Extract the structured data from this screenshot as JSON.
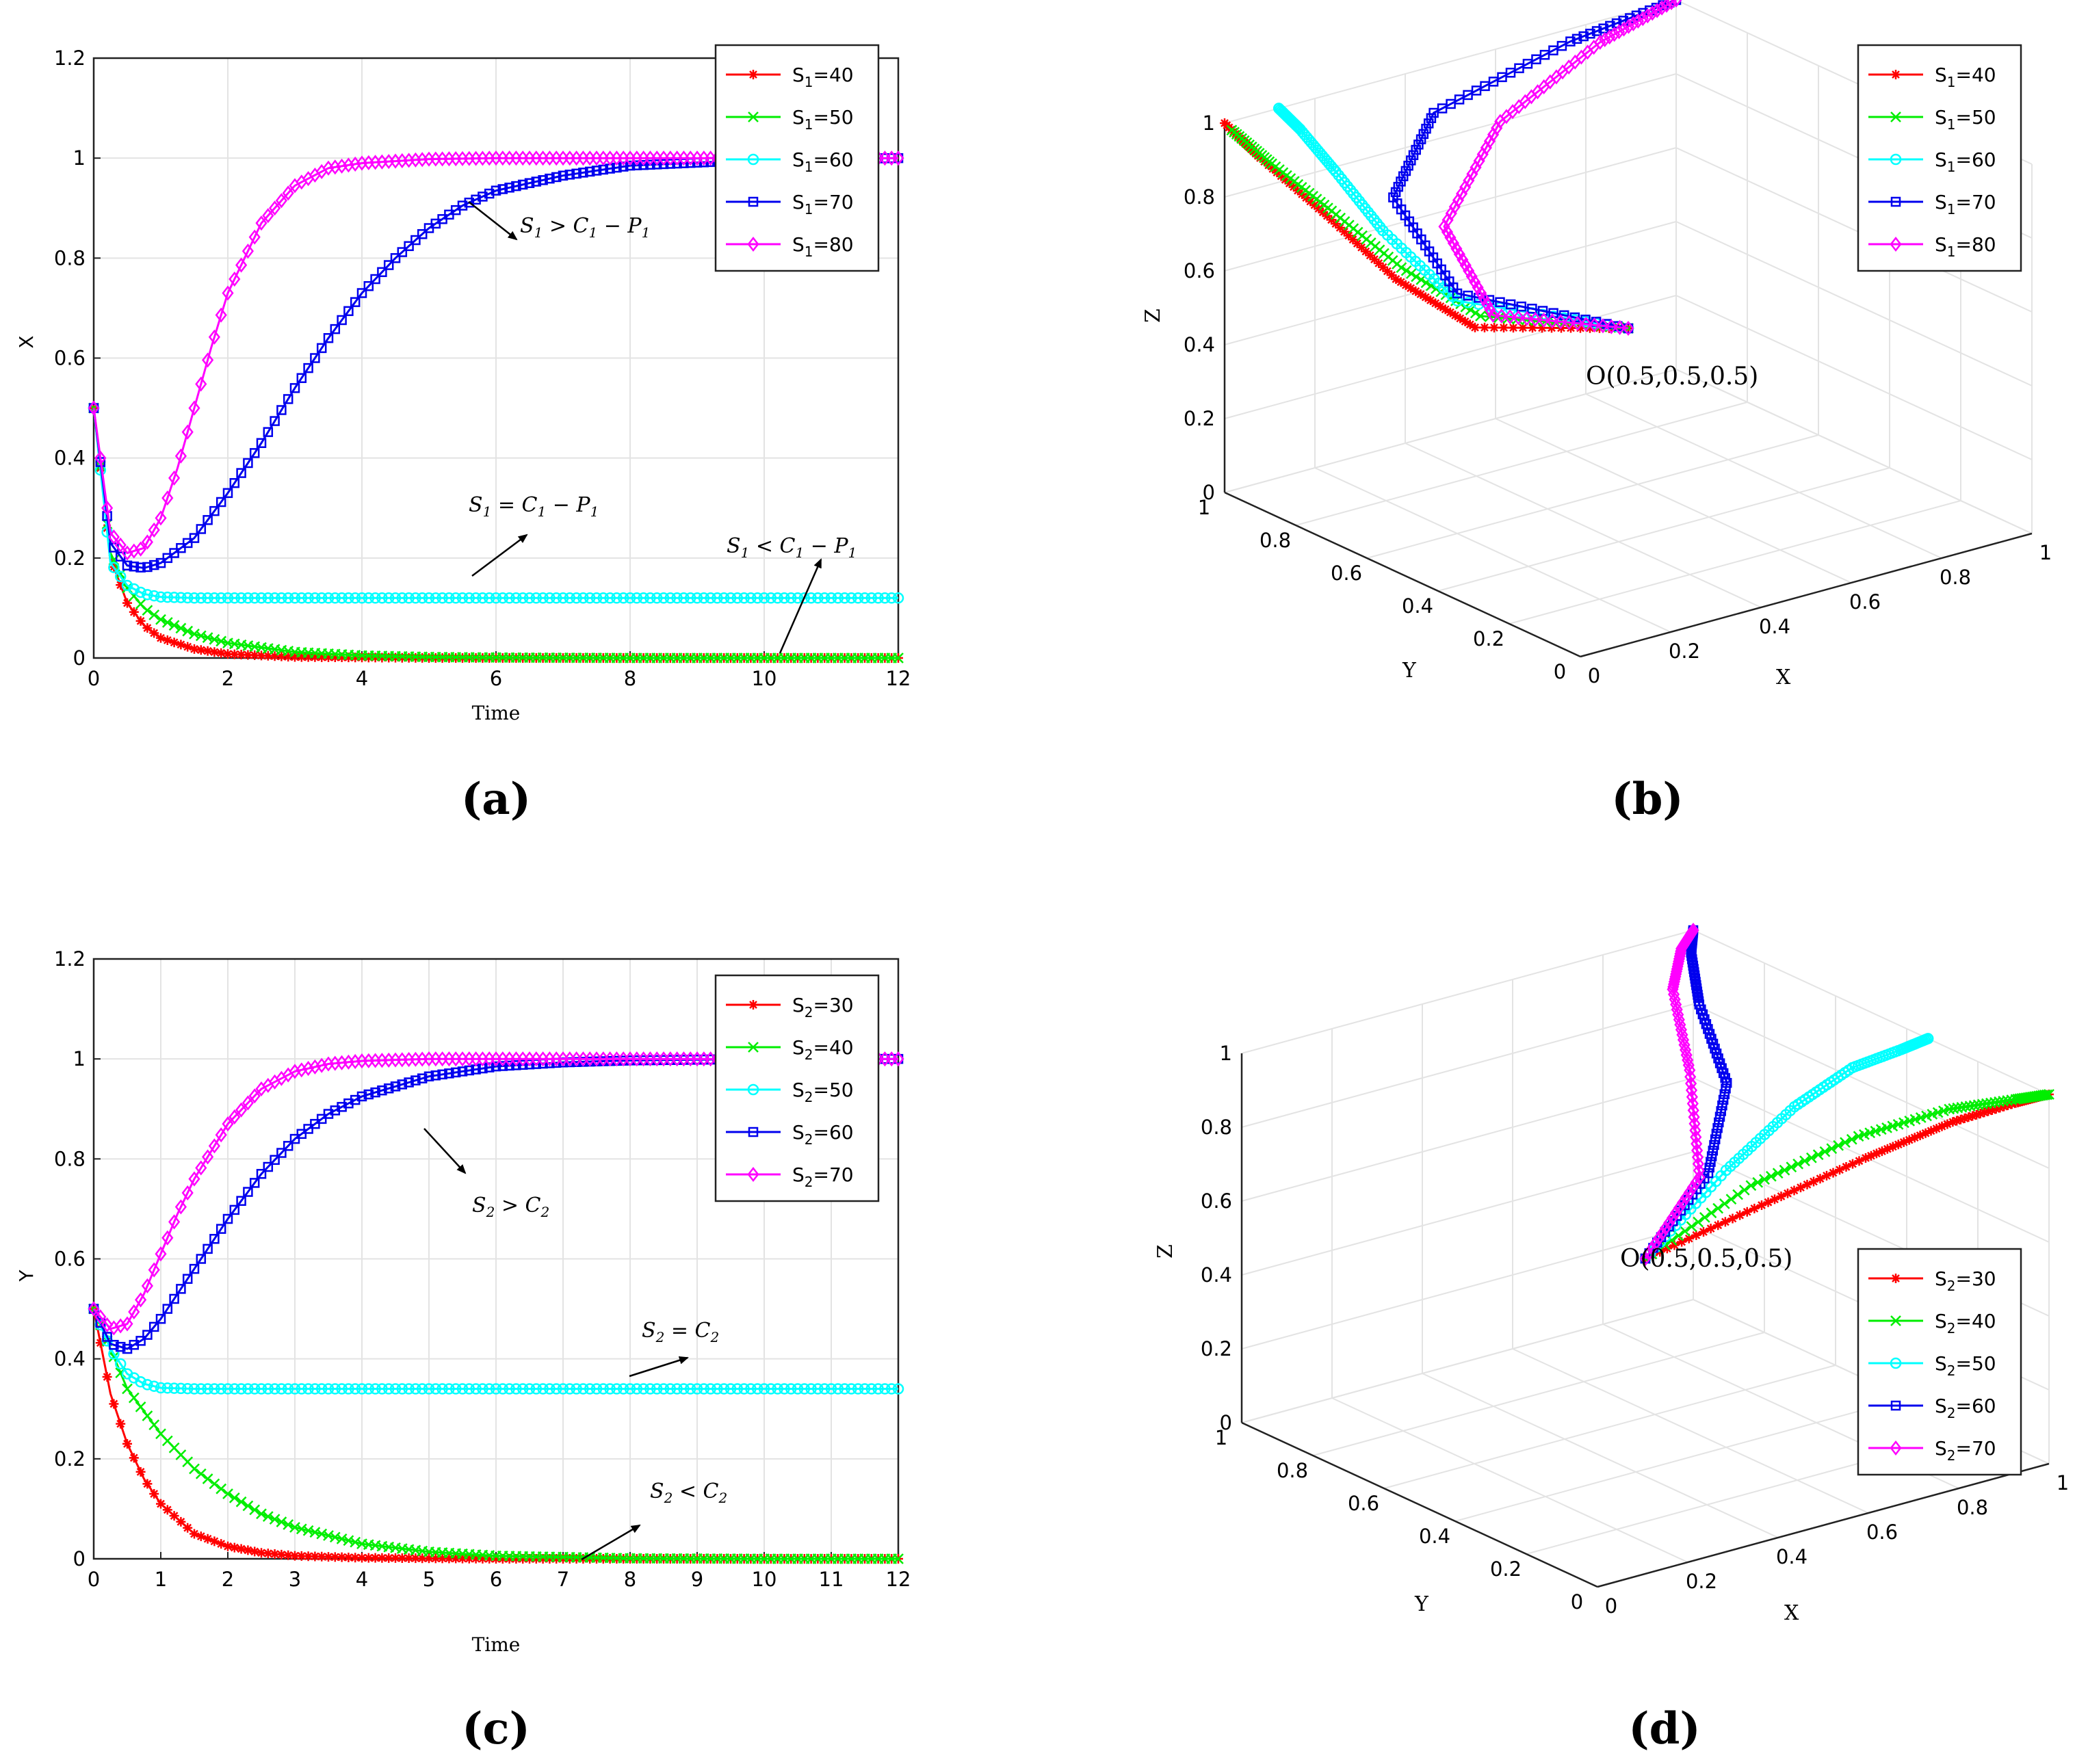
{
  "panel_labels": [
    "(a)",
    "(b)",
    "(c)",
    "(d)"
  ],
  "colors": {
    "red": "#ff0000",
    "green": "#00ee00",
    "cyan": "#00ffff",
    "blue": "#0000ee",
    "magenta": "#ff00ff"
  },
  "chart_data": [
    {
      "id": "a",
      "type": "line",
      "title": "",
      "xlabel": "Time",
      "ylabel": "X",
      "xlim": [
        0,
        12
      ],
      "ylim": [
        0,
        1.2
      ],
      "xticks": [
        0,
        2,
        4,
        6,
        8,
        10,
        12
      ],
      "yticks": [
        0,
        0.2,
        0.4,
        0.6,
        0.8,
        1,
        1.2
      ],
      "grid": true,
      "legend_position": "top-right",
      "series": [
        {
          "name": "S1=40",
          "legend_main": "S",
          "legend_sub": "1",
          "legend_rest": "=40",
          "color": "#ff0000",
          "marker": "star",
          "x": [
            0,
            0.25,
            0.5,
            0.75,
            1,
            1.5,
            2,
            3,
            4,
            5,
            6,
            8,
            10,
            12
          ],
          "values": [
            0.5,
            0.2,
            0.11,
            0.065,
            0.04,
            0.018,
            0.008,
            0.002,
            0.001,
            0,
            0,
            0,
            0,
            0
          ]
        },
        {
          "name": "S1=50",
          "legend_main": "S",
          "legend_sub": "1",
          "legend_rest": "=50",
          "color": "#00ee00",
          "marker": "x",
          "x": [
            0,
            0.25,
            0.5,
            0.75,
            1,
            1.5,
            2,
            3,
            4,
            5,
            6,
            8,
            10,
            12
          ],
          "values": [
            0.5,
            0.21,
            0.14,
            0.1,
            0.077,
            0.048,
            0.03,
            0.012,
            0.005,
            0.002,
            0.001,
            0,
            0,
            0
          ]
        },
        {
          "name": "S1=60",
          "legend_main": "S",
          "legend_sub": "1",
          "legend_rest": "=60",
          "color": "#00ffff",
          "marker": "circle",
          "x": [
            0,
            0.25,
            0.5,
            0.75,
            1,
            1.5,
            2,
            3,
            4,
            6,
            8,
            10,
            12
          ],
          "values": [
            0.5,
            0.19,
            0.145,
            0.128,
            0.122,
            0.12,
            0.12,
            0.12,
            0.12,
            0.12,
            0.12,
            0.12,
            0.12
          ]
        },
        {
          "name": "S1=70",
          "legend_main": "S",
          "legend_sub": "1",
          "legend_rest": "=70",
          "color": "#0000ee",
          "marker": "square",
          "x": [
            0,
            0.25,
            0.5,
            0.75,
            1,
            1.5,
            2,
            2.5,
            3,
            3.5,
            4,
            4.5,
            5,
            5.5,
            6,
            7,
            8,
            10,
            12
          ],
          "values": [
            0.5,
            0.23,
            0.185,
            0.18,
            0.19,
            0.24,
            0.33,
            0.43,
            0.54,
            0.64,
            0.73,
            0.8,
            0.86,
            0.905,
            0.935,
            0.965,
            0.985,
            0.997,
            1.0
          ]
        },
        {
          "name": "S1=80",
          "legend_main": "S",
          "legend_sub": "1",
          "legend_rest": "=80",
          "color": "#ff00ff",
          "marker": "diamond",
          "x": [
            0,
            0.25,
            0.5,
            0.75,
            1,
            1.25,
            1.5,
            1.75,
            2,
            2.5,
            3,
            3.5,
            4,
            5,
            6,
            8,
            10,
            12
          ],
          "values": [
            0.5,
            0.25,
            0.21,
            0.22,
            0.28,
            0.38,
            0.5,
            0.62,
            0.73,
            0.87,
            0.945,
            0.98,
            0.99,
            0.998,
            1.0,
            1.0,
            1.0,
            1.0
          ]
        }
      ],
      "annotations": [
        {
          "main": "S",
          "sub": "1",
          "rest": " > C",
          "sub2": "1",
          "rest2": " − P",
          "sub3": "1"
        },
        {
          "main": "S",
          "sub": "1",
          "rest": " = C",
          "sub2": "1",
          "rest2": " − P",
          "sub3": "1"
        },
        {
          "main": "S",
          "sub": "1",
          "rest": " < C",
          "sub2": "1",
          "rest2": " − P",
          "sub3": "1"
        }
      ]
    },
    {
      "id": "b",
      "type": "line3d",
      "xlabel": "X",
      "ylabel": "Y",
      "zlabel": "Z",
      "xlim": [
        0,
        1
      ],
      "ylim": [
        0,
        1
      ],
      "zlim": [
        0,
        1
      ],
      "ticks": [
        0,
        0.2,
        0.4,
        0.6,
        0.8,
        1
      ],
      "xtick_labels": [
        "0",
        "0.2",
        "0.4",
        "0.6",
        "0.8",
        "1"
      ],
      "ytick_labels": [
        "0",
        "0.2",
        "0.4",
        "0.6",
        "0.8",
        "1"
      ],
      "ztick_labels": [
        "0",
        "0.2",
        "0.4",
        "0.6",
        "0.8",
        "1"
      ],
      "origin_label": "O(0.5,0.5,0.5)",
      "grid": true,
      "legend_position": "top-right",
      "series": [
        {
          "name": "S1=40",
          "legend_main": "S",
          "legend_sub": "1",
          "legend_rest": "=40",
          "color": "#ff0000",
          "marker": "star",
          "x": [
            0.5,
            0.2,
            0.08,
            0.03,
            0.0,
            0.0
          ],
          "y": [
            0.5,
            0.55,
            0.62,
            0.75,
            0.9,
            1.0
          ],
          "z": [
            0.5,
            0.58,
            0.72,
            0.85,
            0.95,
            1.0
          ]
        },
        {
          "name": "S1=50",
          "legend_main": "S",
          "legend_sub": "1",
          "legend_rest": "=50",
          "color": "#00ee00",
          "marker": "x",
          "x": [
            0.5,
            0.22,
            0.1,
            0.04,
            0.01,
            0.0
          ],
          "y": [
            0.5,
            0.56,
            0.63,
            0.75,
            0.88,
            0.98
          ],
          "z": [
            0.5,
            0.6,
            0.74,
            0.86,
            0.94,
            0.99
          ]
        },
        {
          "name": "S1=60",
          "legend_main": "S",
          "legend_sub": "1",
          "legend_rest": "=60",
          "color": "#00ffff",
          "marker": "circle",
          "x": [
            0.5,
            0.2,
            0.13,
            0.12,
            0.12,
            0.12
          ],
          "y": [
            0.5,
            0.6,
            0.72,
            0.84,
            0.94,
            1.0
          ],
          "z": [
            0.5,
            0.63,
            0.79,
            0.9,
            0.97,
            1.0
          ]
        },
        {
          "name": "S1=70",
          "legend_main": "S",
          "legend_sub": "1",
          "legend_rest": "=70",
          "color": "#0000ee",
          "marker": "square",
          "x": [
            0.5,
            0.2,
            0.2,
            0.4,
            0.75,
            1.0
          ],
          "y": [
            0.5,
            0.6,
            0.78,
            0.92,
            0.98,
            1.0
          ],
          "z": [
            0.5,
            0.65,
            0.83,
            0.93,
            0.98,
            1.0
          ]
        },
        {
          "name": "S1=80",
          "legend_main": "S",
          "legend_sub": "1",
          "legend_rest": "=80",
          "color": "#ff00ff",
          "marker": "diamond",
          "x": [
            0.5,
            0.24,
            0.25,
            0.5,
            0.8,
            1.0
          ],
          "y": [
            0.5,
            0.55,
            0.7,
            0.86,
            0.96,
            1.0
          ],
          "z": [
            0.5,
            0.6,
            0.77,
            0.9,
            0.97,
            1.0
          ]
        }
      ]
    },
    {
      "id": "c",
      "type": "line",
      "title": "",
      "xlabel": "Time",
      "ylabel": "Y",
      "xlim": [
        0,
        12
      ],
      "ylim": [
        0,
        1.2
      ],
      "xticks": [
        0,
        1,
        2,
        3,
        4,
        5,
        6,
        7,
        8,
        9,
        10,
        11,
        12
      ],
      "yticks": [
        0,
        0.2,
        0.4,
        0.6,
        0.8,
        1,
        1.2
      ],
      "grid": true,
      "legend_position": "top-right",
      "series": [
        {
          "name": "S2=30",
          "legend_main": "S",
          "legend_sub": "2",
          "legend_rest": "=30",
          "color": "#ff0000",
          "marker": "star",
          "x": [
            0,
            0.25,
            0.5,
            0.75,
            1,
            1.5,
            2,
            2.5,
            3,
            4,
            5,
            6,
            8,
            10,
            12
          ],
          "values": [
            0.5,
            0.33,
            0.23,
            0.16,
            0.11,
            0.05,
            0.025,
            0.012,
            0.006,
            0.002,
            0.001,
            0,
            0,
            0,
            0
          ]
        },
        {
          "name": "S2=40",
          "legend_main": "S",
          "legend_sub": "2",
          "legend_rest": "=40",
          "color": "#00ee00",
          "marker": "x",
          "x": [
            0,
            0.5,
            1,
            1.5,
            2,
            2.5,
            3,
            4,
            5,
            6,
            8,
            10,
            12
          ],
          "values": [
            0.5,
            0.34,
            0.25,
            0.18,
            0.13,
            0.09,
            0.063,
            0.03,
            0.014,
            0.006,
            0.001,
            0,
            0
          ]
        },
        {
          "name": "S2=50",
          "legend_main": "S",
          "legend_sub": "2",
          "legend_rest": "=50",
          "color": "#00ffff",
          "marker": "circle",
          "x": [
            0,
            0.25,
            0.5,
            0.75,
            1,
            1.5,
            2,
            3,
            4,
            6,
            8,
            10,
            12
          ],
          "values": [
            0.5,
            0.42,
            0.37,
            0.35,
            0.342,
            0.34,
            0.34,
            0.34,
            0.34,
            0.34,
            0.34,
            0.34,
            0.34
          ]
        },
        {
          "name": "S2=60",
          "legend_main": "S",
          "legend_sub": "2",
          "legend_rest": "=60",
          "color": "#0000ee",
          "marker": "square",
          "x": [
            0,
            0.25,
            0.5,
            0.75,
            1,
            1.5,
            2,
            2.5,
            3,
            3.5,
            4,
            5,
            6,
            7,
            8,
            10,
            12
          ],
          "values": [
            0.5,
            0.43,
            0.42,
            0.44,
            0.48,
            0.58,
            0.68,
            0.77,
            0.84,
            0.89,
            0.925,
            0.965,
            0.985,
            0.993,
            0.997,
            1.0,
            1.0
          ]
        },
        {
          "name": "S2=70",
          "legend_main": "S",
          "legend_sub": "2",
          "legend_rest": "=70",
          "color": "#ff00ff",
          "marker": "diamond",
          "x": [
            0,
            0.25,
            0.5,
            0.75,
            1,
            1.25,
            1.5,
            2,
            2.5,
            3,
            3.5,
            4,
            5,
            6,
            8,
            10,
            12
          ],
          "values": [
            0.5,
            0.46,
            0.47,
            0.53,
            0.61,
            0.69,
            0.76,
            0.87,
            0.94,
            0.975,
            0.99,
            0.996,
            1.0,
            1.0,
            1.0,
            1.0,
            1.0
          ]
        }
      ],
      "annotations": [
        {
          "main": "S",
          "sub": "2",
          "rest": " > C",
          "sub2": "2"
        },
        {
          "main": "S",
          "sub": "2",
          "rest": " = C",
          "sub2": "2"
        },
        {
          "main": "S",
          "sub": "2",
          "rest": " < C",
          "sub2": "2"
        }
      ]
    },
    {
      "id": "d",
      "type": "line3d",
      "xlabel": "X",
      "ylabel": "Y",
      "zlabel": "Z",
      "xlim": [
        0,
        1
      ],
      "ylim": [
        0,
        1
      ],
      "zlim": [
        0,
        1
      ],
      "ticks": [
        0,
        0.2,
        0.4,
        0.6,
        0.8,
        1
      ],
      "xtick_labels": [
        "0",
        "0.2",
        "0.4",
        "0.6",
        "0.8",
        "1"
      ],
      "ytick_labels": [
        "0",
        "0.2",
        "0.4",
        "0.6",
        "0.8",
        "1"
      ],
      "ztick_labels": [
        "0",
        "0.2",
        "0.4",
        "0.6",
        "0.8",
        "1"
      ],
      "origin_label": "O(0.5,0.5,0.5)",
      "grid": true,
      "legend_position": "bottom-right",
      "series": [
        {
          "name": "S2=30",
          "legend_main": "S",
          "legend_sub": "2",
          "legend_rest": "=30",
          "color": "#ff0000",
          "marker": "star",
          "x": [
            0.5,
            0.6,
            0.72,
            0.85,
            0.95,
            1.0
          ],
          "y": [
            0.5,
            0.3,
            0.16,
            0.08,
            0.03,
            0.0
          ],
          "z": [
            0.5,
            0.7,
            0.85,
            0.94,
            0.98,
            1.0
          ]
        },
        {
          "name": "S2=40",
          "legend_main": "S",
          "legend_sub": "2",
          "legend_rest": "=40",
          "color": "#00ee00",
          "marker": "x",
          "x": [
            0.5,
            0.6,
            0.72,
            0.85,
            0.95,
            1.0
          ],
          "y": [
            0.5,
            0.33,
            0.18,
            0.09,
            0.03,
            0.0
          ],
          "z": [
            0.5,
            0.74,
            0.9,
            0.97,
            0.99,
            1.0
          ]
        },
        {
          "name": "S2=50",
          "legend_main": "S",
          "legend_sub": "2",
          "legend_rest": "=50",
          "color": "#00ffff",
          "marker": "circle",
          "x": [
            0.5,
            0.6,
            0.72,
            0.84,
            0.94,
            1.0
          ],
          "y": [
            0.5,
            0.4,
            0.36,
            0.35,
            0.34,
            0.34
          ],
          "z": [
            0.5,
            0.75,
            0.9,
            0.97,
            0.99,
            1.0
          ]
        },
        {
          "name": "S2=60",
          "legend_main": "S",
          "legend_sub": "2",
          "legend_rest": "=60",
          "color": "#0000ee",
          "marker": "square",
          "x": [
            0.5,
            0.6,
            0.72,
            0.84,
            0.94,
            1.0
          ],
          "y": [
            0.5,
            0.45,
            0.55,
            0.78,
            0.93,
            1.0
          ],
          "z": [
            0.5,
            0.72,
            0.88,
            0.95,
            0.99,
            1.0
          ]
        },
        {
          "name": "S2=70",
          "legend_main": "S",
          "legend_sub": "2",
          "legend_rest": "=70",
          "color": "#ff00ff",
          "marker": "diamond",
          "x": [
            0.5,
            0.62,
            0.74,
            0.86,
            0.95,
            1.0
          ],
          "y": [
            0.5,
            0.5,
            0.68,
            0.88,
            0.97,
            1.0
          ],
          "z": [
            0.5,
            0.68,
            0.85,
            0.94,
            0.98,
            1.0
          ]
        }
      ]
    }
  ]
}
